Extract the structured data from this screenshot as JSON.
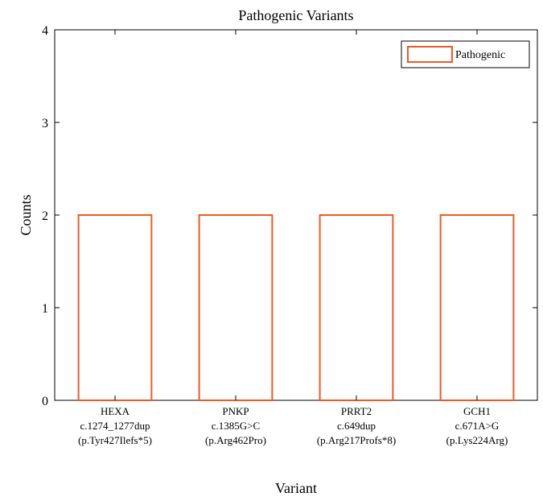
{
  "chart_data": {
    "type": "bar",
    "title": "Pathogenic Variants",
    "xlabel": "Variant",
    "ylabel": "Counts",
    "ylim": [
      0,
      4
    ],
    "yticks": [
      0,
      1,
      2,
      3,
      4
    ],
    "categories": [
      [
        "HEXA",
        "c.1274_1277dup",
        "(p.Tyr427Ilefs*5)"
      ],
      [
        "PNKP",
        "c.1385G>C",
        "(p.Arg462Pro)"
      ],
      [
        "PRRT2",
        "c.649dup",
        "(p.Arg217Profs*8)"
      ],
      [
        "GCH1",
        "c.671A>G",
        "(p.Lys224Arg)"
      ]
    ],
    "series": [
      {
        "name": "Pathogenic",
        "values": [
          2,
          2,
          2,
          2
        ],
        "color": "#f05a22",
        "fill": "none"
      }
    ],
    "legend_position": "top-right",
    "grid": false,
    "box": true
  }
}
